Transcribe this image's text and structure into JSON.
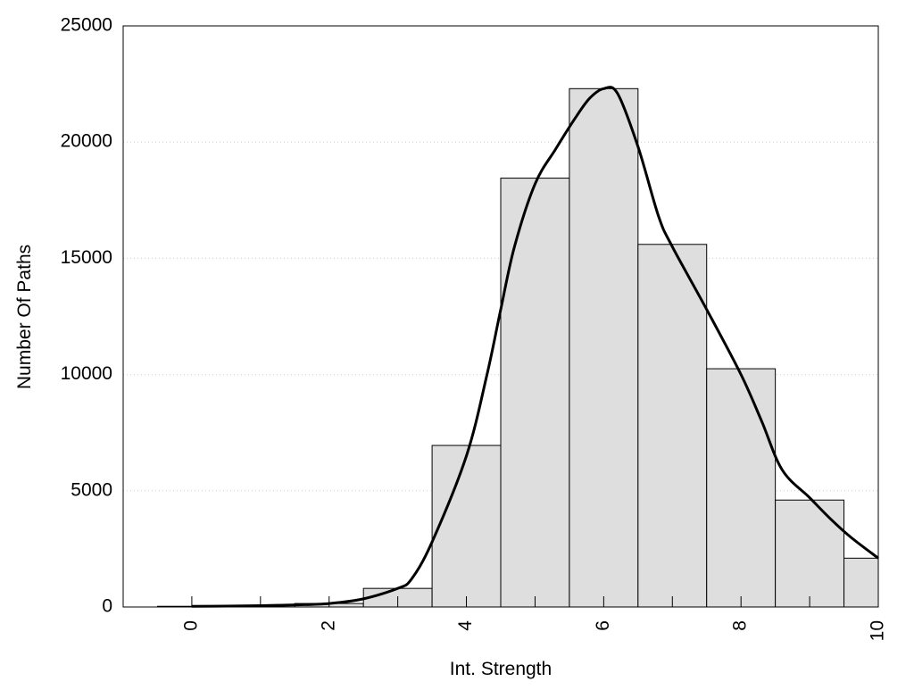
{
  "chart_data": {
    "type": "bar",
    "title": "",
    "xlabel": "Int. Strength",
    "ylabel": "Number Of Paths",
    "xlim": [
      -1,
      10
    ],
    "ylim": [
      0,
      25000
    ],
    "x_ticks": [
      0,
      2,
      4,
      6,
      8,
      10
    ],
    "x_tick_labels": [
      "0",
      "2",
      "4",
      "6",
      "8",
      "10"
    ],
    "y_ticks": [
      0,
      5000,
      10000,
      15000,
      20000,
      25000
    ],
    "y_tick_labels": [
      "0",
      "5000",
      "10000",
      "15000",
      "20000",
      "25000"
    ],
    "grid": "horizontal dotted",
    "legend": "none",
    "bar_color": "#dedede",
    "bars": [
      {
        "x": 0,
        "value": 30
      },
      {
        "x": 1,
        "value": 60
      },
      {
        "x": 2,
        "value": 150
      },
      {
        "x": 3,
        "value": 800
      },
      {
        "x": 4,
        "value": 6950
      },
      {
        "x": 5,
        "value": 18450
      },
      {
        "x": 6,
        "value": 22300
      },
      {
        "x": 7,
        "value": 15600
      },
      {
        "x": 8,
        "value": 10250
      },
      {
        "x": 9,
        "value": 4600
      },
      {
        "x": 10,
        "value": 2100
      }
    ],
    "curve": {
      "x": [
        0,
        0.5,
        1,
        1.5,
        2,
        2.5,
        3,
        3.2,
        3.5,
        4,
        4.3,
        4.5,
        4.7,
        5,
        5.3,
        5.6,
        5.8,
        6,
        6.2,
        6.5,
        6.8,
        7,
        7.5,
        8,
        8.3,
        8.6,
        9,
        9.3,
        9.6,
        10
      ],
      "y": [
        30,
        40,
        60,
        90,
        150,
        350,
        800,
        1200,
        2800,
        6500,
        10000,
        12800,
        15500,
        18200,
        19700,
        21100,
        21900,
        22300,
        22100,
        19800,
        16800,
        15500,
        12800,
        10000,
        8000,
        5900,
        4700,
        3800,
        3000,
        2100
      ]
    }
  }
}
